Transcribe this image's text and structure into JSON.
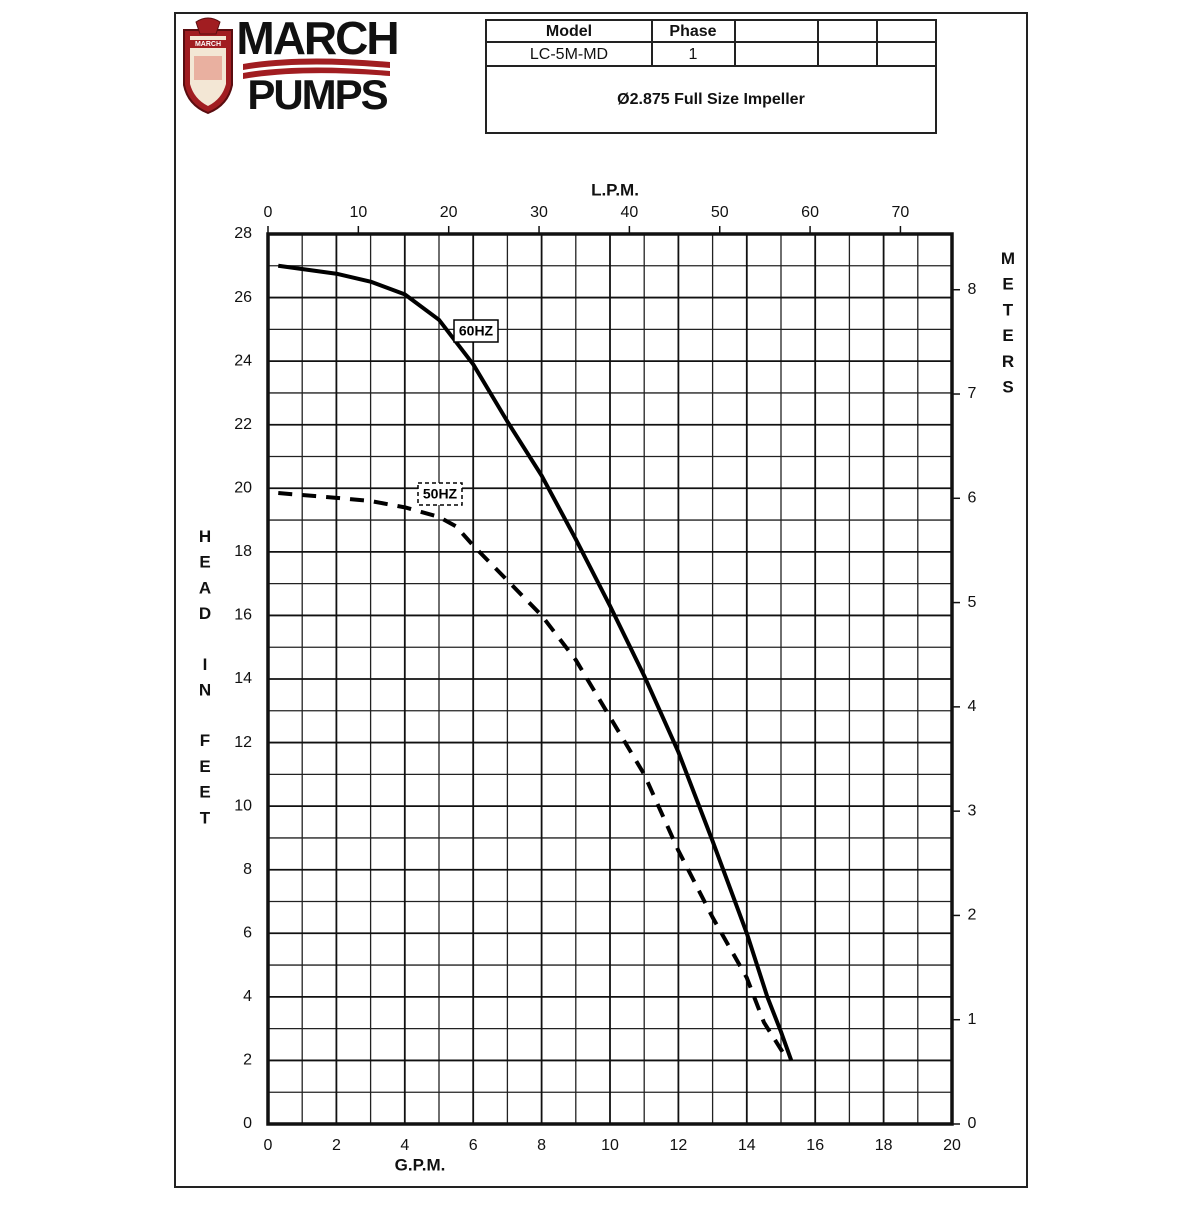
{
  "header": {
    "logo": [
      "MARCH",
      "PUMPS"
    ],
    "table": {
      "headers": [
        "Model",
        "Phase"
      ],
      "row": [
        "LC-5M-MD",
        "1"
      ],
      "impeller": "Ø2.875 Full Size Impeller"
    }
  },
  "chart_data": {
    "type": "line",
    "xlabel": "G.P.M.",
    "ylabel": "HEAD IN FEET",
    "x2label": "L.P.M.",
    "y2label": "METERS",
    "xlim": [
      0,
      20
    ],
    "xticks": [
      0,
      2,
      4,
      6,
      8,
      10,
      12,
      14,
      16,
      18,
      20
    ],
    "x_minor_ticks": [
      1,
      3,
      5,
      7,
      9,
      11,
      13,
      15,
      17,
      19
    ],
    "ylim": [
      0,
      28
    ],
    "yticks": [
      0,
      2,
      4,
      6,
      8,
      10,
      12,
      14,
      16,
      18,
      20,
      22,
      24,
      26,
      28
    ],
    "y_minor_ticks": [
      1,
      3,
      5,
      7,
      9,
      11,
      13,
      15,
      17,
      19,
      21,
      23,
      25,
      27
    ],
    "x2lim": [
      0,
      75.708
    ],
    "x2ticks": [
      0,
      10,
      20,
      30,
      40,
      50,
      60,
      70
    ],
    "y2lim": [
      0,
      8.5344
    ],
    "y2ticks": [
      0,
      1,
      2,
      3,
      4,
      5,
      6,
      7,
      8
    ],
    "grid": true,
    "series": [
      {
        "name": "60HZ",
        "color": "#000000",
        "dashed": false,
        "x": [
          0.3,
          2,
          3,
          4,
          5,
          6,
          7,
          8,
          9,
          10,
          11,
          12,
          13,
          14,
          14.6,
          15,
          15.3
        ],
        "values": [
          27.0,
          26.75,
          26.5,
          26.1,
          25.3,
          23.9,
          22.1,
          20.4,
          18.4,
          16.3,
          14.1,
          11.7,
          8.9,
          6.0,
          4.0,
          2.9,
          2.0
        ]
      },
      {
        "name": "50HZ",
        "color": "#000000",
        "dashed": true,
        "x": [
          0.3,
          2,
          3,
          4,
          5,
          5.5,
          6,
          7,
          8,
          9,
          10,
          11,
          12,
          13,
          14,
          14.5,
          15.2
        ],
        "values": [
          19.85,
          19.7,
          19.6,
          19.4,
          19.1,
          18.8,
          18.2,
          17.1,
          16.0,
          14.6,
          12.8,
          11.0,
          8.6,
          6.5,
          4.6,
          3.2,
          2.0
        ]
      }
    ]
  }
}
